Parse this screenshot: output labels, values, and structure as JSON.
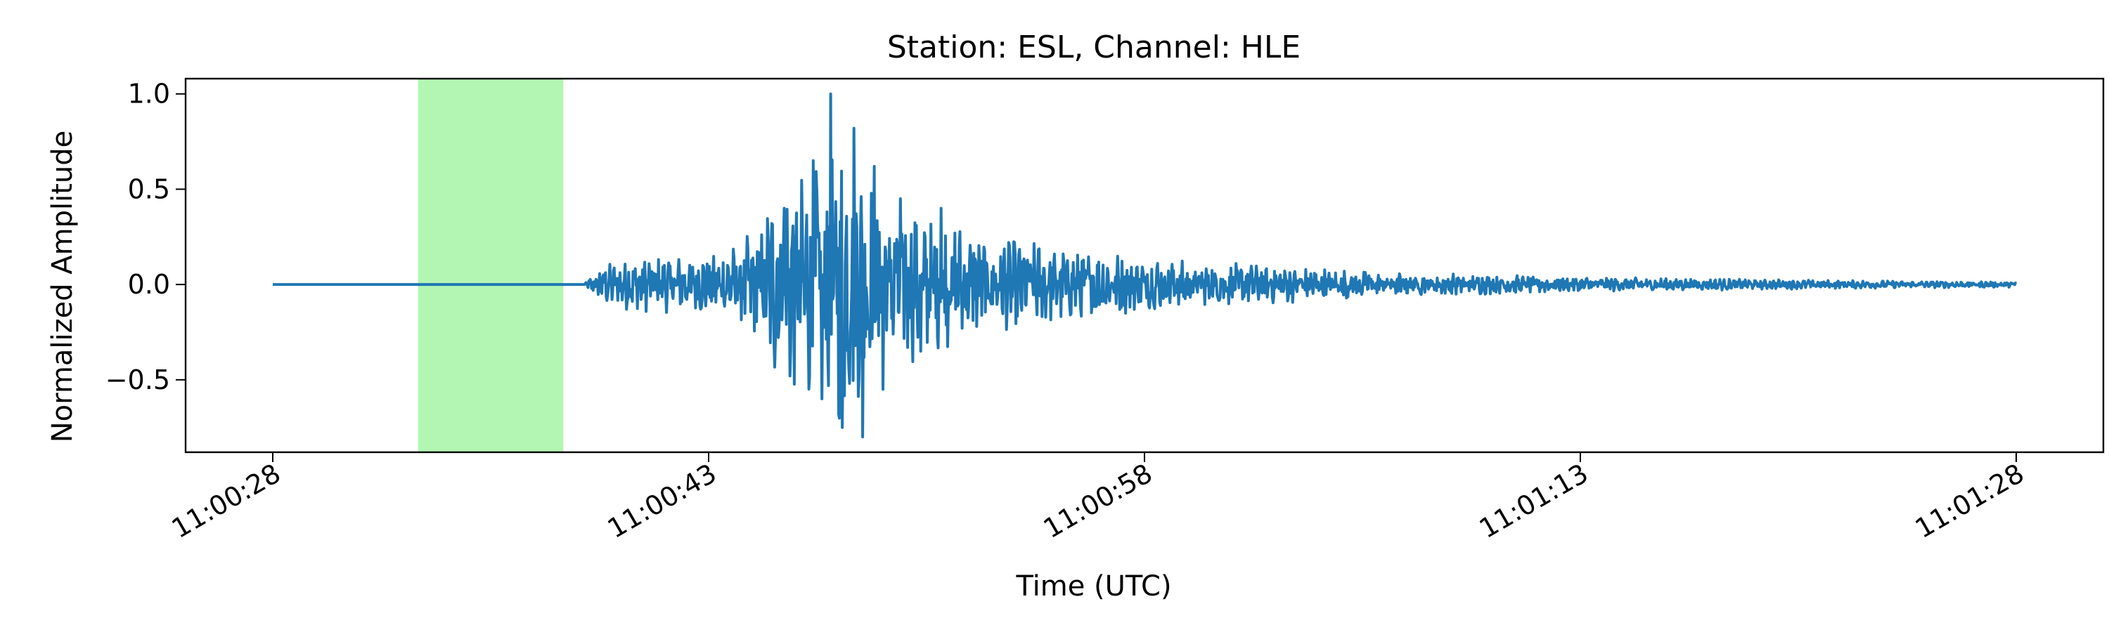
{
  "chart_data": {
    "type": "line",
    "title": "Station: ESL, Channel: HLE",
    "xlabel": "Time (UTC)",
    "ylabel": "Normalized Amplitude",
    "x_start": "11:00:28",
    "x_end": "11:01:28",
    "x_unit": "seconds after 11:00:28",
    "xlim": [
      -3,
      63
    ],
    "ylim": [
      -0.88,
      1.08
    ],
    "x_ticks": [
      0,
      15,
      30,
      45,
      60
    ],
    "x_tick_labels": [
      "11:00:28",
      "11:00:43",
      "11:00:58",
      "11:01:13",
      "11:01:28"
    ],
    "y_ticks": [
      -0.5,
      0.0,
      0.5,
      1.0
    ],
    "y_tick_labels": [
      "−0.5",
      "0.0",
      "0.5",
      "1.0"
    ],
    "highlight_window": {
      "x_start": 5.0,
      "x_end": 10.0,
      "color": "#b3f5b3"
    },
    "grid": false,
    "series": [
      {
        "color": "#1f77b4",
        "onset": 10.7,
        "envelope": [
          [
            0,
            0
          ],
          [
            10.7,
            0
          ],
          [
            11.3,
            0.1
          ],
          [
            12.5,
            0.15
          ],
          [
            14,
            0.15
          ],
          [
            15.5,
            0.17
          ],
          [
            16.5,
            0.3
          ],
          [
            17.3,
            0.5
          ],
          [
            18.3,
            0.6
          ],
          [
            19.3,
            0.8
          ],
          [
            20,
            0.65
          ],
          [
            21.5,
            0.45
          ],
          [
            23,
            0.35
          ],
          [
            25,
            0.25
          ],
          [
            28,
            0.18
          ],
          [
            32,
            0.12
          ],
          [
            36,
            0.09
          ],
          [
            40,
            0.06
          ],
          [
            45,
            0.04
          ],
          [
            50,
            0.03
          ],
          [
            55,
            0.02
          ],
          [
            60,
            0.015
          ]
        ],
        "peaks": [
          {
            "x": 19.2,
            "y": 1.0
          },
          {
            "x": 19.6,
            "y": -0.75
          },
          {
            "x": 20.0,
            "y": 0.82
          },
          {
            "x": 20.3,
            "y": -0.8
          },
          {
            "x": 18.6,
            "y": 0.65
          },
          {
            "x": 18.9,
            "y": -0.6
          },
          {
            "x": 20.7,
            "y": 0.62
          },
          {
            "x": 21.0,
            "y": -0.55
          },
          {
            "x": 17.6,
            "y": 0.4
          },
          {
            "x": 17.8,
            "y": -0.48
          },
          {
            "x": 21.6,
            "y": 0.45
          },
          {
            "x": 22.3,
            "y": -0.35
          },
          {
            "x": 23.0,
            "y": 0.4
          }
        ]
      }
    ]
  }
}
